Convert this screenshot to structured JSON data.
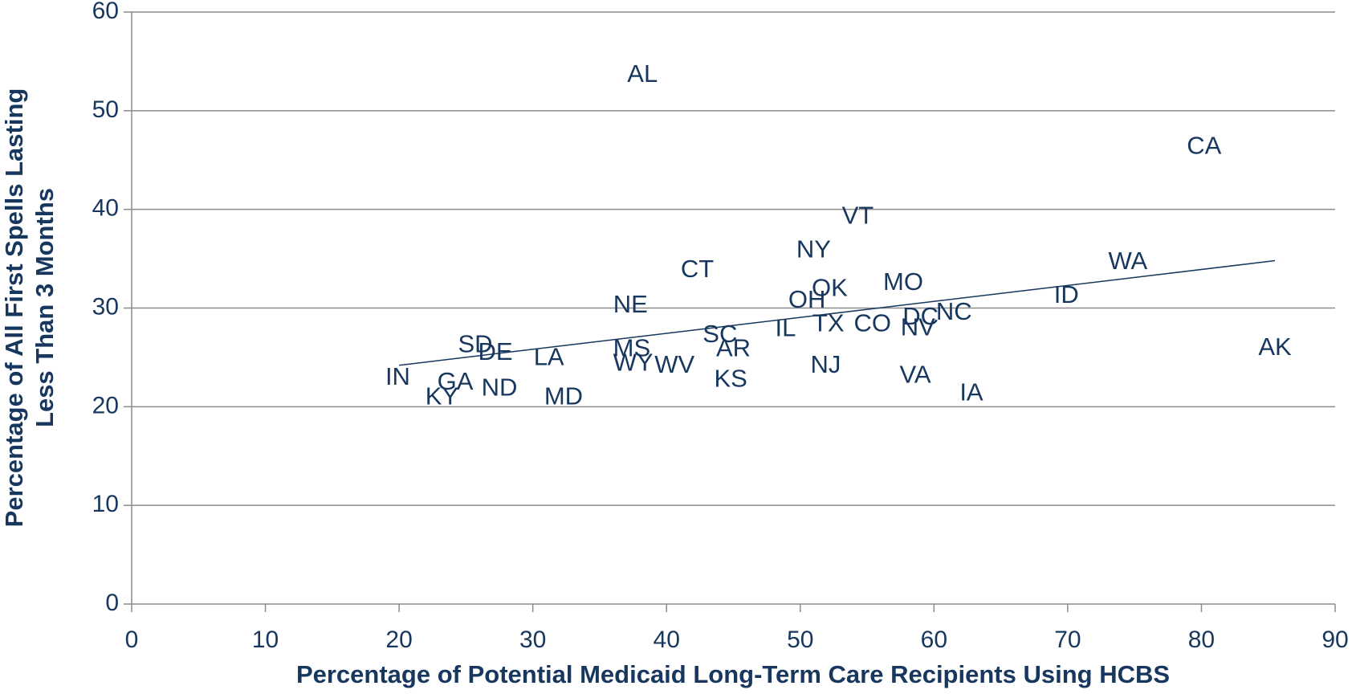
{
  "chart_data": {
    "type": "scatter",
    "xlabel": "Percentage of Potential Medicaid Long-Term Care Recipients Using HCBS",
    "ylabel": [
      "Percentage of All First Spells Lasting",
      "Less Than 3 Months"
    ],
    "color": "#17375e",
    "labels": [
      "AL",
      "CA",
      "VT",
      "NY",
      "WA",
      "CT",
      "MO",
      "OK",
      "ID",
      "OH",
      "NE",
      "NC",
      "DC",
      "TX",
      "CO",
      "NV",
      "IL",
      "SC",
      "AK",
      "AR",
      "SD",
      "MS",
      "DE",
      "LA",
      "NJ",
      "WV",
      "WY",
      "VA",
      "IN",
      "KS",
      "GA",
      "ND",
      "IA",
      "MD",
      "KY"
    ],
    "x": [
      38.2,
      80.2,
      54.3,
      51.0,
      74.5,
      42.3,
      57.7,
      52.2,
      69.9,
      50.5,
      37.3,
      61.5,
      59.0,
      52.1,
      55.4,
      58.8,
      48.9,
      44.0,
      85.5,
      45.0,
      25.7,
      37.4,
      27.2,
      31.2,
      51.9,
      40.6,
      37.5,
      58.6,
      19.9,
      44.8,
      24.2,
      27.5,
      62.8,
      32.3,
      23.2
    ],
    "values": [
      53.6,
      46.3,
      39.2,
      35.8,
      34.6,
      33.8,
      32.5,
      31.9,
      31.2,
      30.7,
      30.2,
      29.5,
      29.0,
      28.3,
      28.3,
      27.9,
      27.8,
      27.2,
      25.9,
      25.8,
      26.2,
      25.8,
      25.4,
      24.9,
      24.1,
      24.1,
      24.3,
      23.1,
      22.9,
      22.7,
      22.4,
      21.8,
      21.3,
      20.9,
      20.9
    ],
    "trendline": {
      "x": [
        20,
        85.5
      ],
      "values": [
        24.2,
        34.8
      ],
      "color": "#17375e"
    },
    "xlim": [
      0,
      90
    ],
    "xticks": [
      0,
      10,
      20,
      30,
      40,
      50,
      60,
      70,
      80,
      90
    ],
    "ylim": [
      0,
      60
    ],
    "yticks": [
      0,
      10,
      20,
      30,
      40,
      50,
      60
    ],
    "grid": true
  }
}
